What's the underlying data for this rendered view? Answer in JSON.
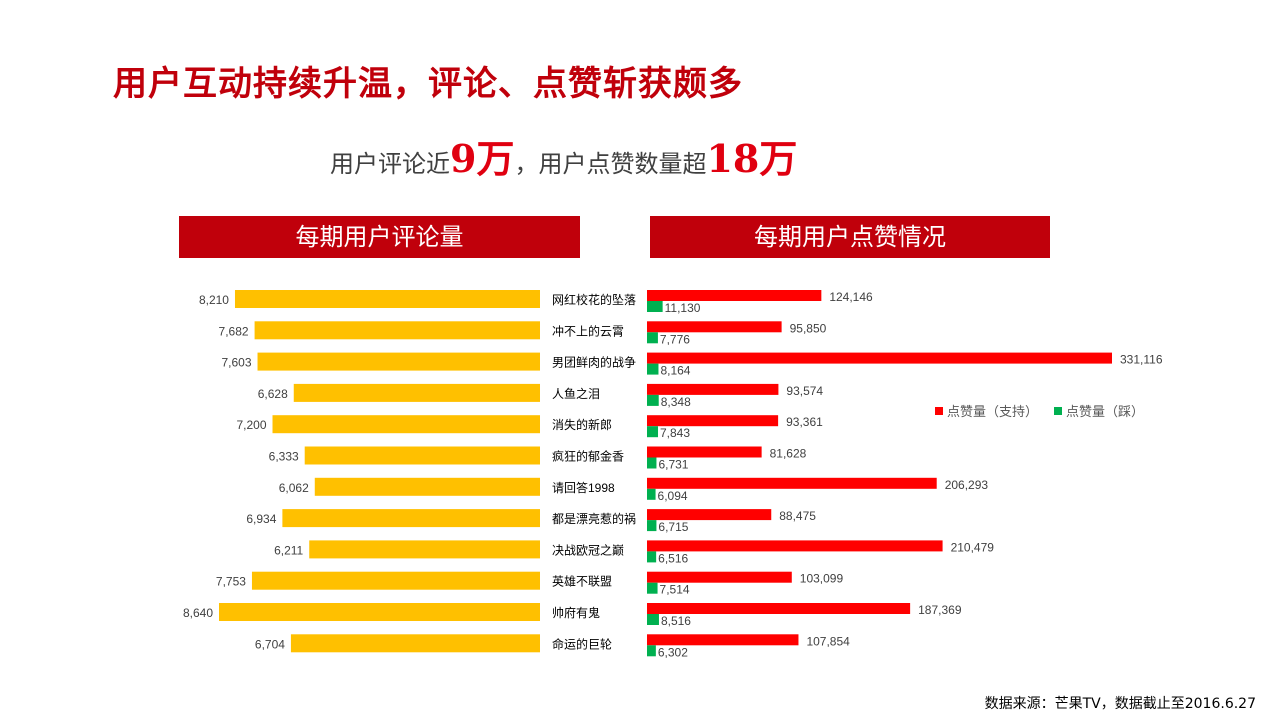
{
  "page": {
    "title": "用户互动持续升温，评论、点赞斩获颇多",
    "subtitle_parts": [
      "用户评论近",
      "9万",
      "，用户点赞数量超",
      "18万"
    ],
    "source": "数据来源：芒果TV，数据截止至2016.6.27"
  },
  "colors": {
    "title": "#c0000b",
    "header_bg": "#c0000b",
    "highlight": "#e00010",
    "comments_bar": "#ffc000",
    "likes_bar": "#ff0000",
    "dislikes_bar": "#00b050"
  },
  "chart_data": [
    {
      "type": "bar",
      "orientation": "horizontal",
      "direction": "right-to-left",
      "title": "每期用户评论量",
      "categories": [
        "网红校花的坠落",
        "冲不上的云霄",
        "男团鲜肉的战争",
        "人鱼之泪",
        "消失的新郎",
        "疯狂的郁金香",
        "请回答1998",
        "都是漂亮惹的祸",
        "决战欧冠之巅",
        "英雄不联盟",
        "帅府有鬼",
        "命运的巨轮"
      ],
      "series": [
        {
          "values": [
            8210,
            7682,
            7603,
            6628,
            7200,
            6333,
            6062,
            6934,
            6211,
            7753,
            8640,
            6704
          ]
        }
      ],
      "value_labels": [
        "8,210",
        "7,682",
        "7,603",
        "6,628",
        "7,200",
        "6,333",
        "6,062",
        "6,934",
        "6,211",
        "7,753",
        "8,640",
        "6,704"
      ],
      "xlim": [
        0,
        8640
      ]
    },
    {
      "type": "bar",
      "orientation": "horizontal",
      "title": "每期用户点赞情况",
      "categories": [
        "网红校花的坠落",
        "冲不上的云霄",
        "男团鲜肉的战争",
        "人鱼之泪",
        "消失的新郎",
        "疯狂的郁金香",
        "请回答1998",
        "都是漂亮惹的祸",
        "决战欧冠之巅",
        "英雄不联盟",
        "帅府有鬼",
        "命运的巨轮"
      ],
      "series": [
        {
          "name": "点赞量（支持）",
          "values": [
            124146,
            95850,
            331116,
            93574,
            93361,
            81628,
            206293,
            88475,
            210479,
            103099,
            187369,
            107854
          ],
          "labels": [
            "124,146",
            "95,850",
            "331,116",
            "93,574",
            "93,361",
            "81,628",
            "206,293",
            "88,475",
            "210,479",
            "103,099",
            "187,369",
            "107,854"
          ]
        },
        {
          "name": "点赞量（踩）",
          "values": [
            11130,
            7776,
            8164,
            8348,
            7843,
            6731,
            6094,
            6715,
            6516,
            7514,
            8516,
            6302
          ],
          "labels": [
            "11,130",
            "7,776",
            "8,164",
            "8,348",
            "7,843",
            "6,731",
            "6,094",
            "6,715",
            "6,516",
            "7,514",
            "8,516",
            "6,302"
          ]
        }
      ],
      "xlim": [
        0,
        331116
      ],
      "legend": "right"
    }
  ]
}
